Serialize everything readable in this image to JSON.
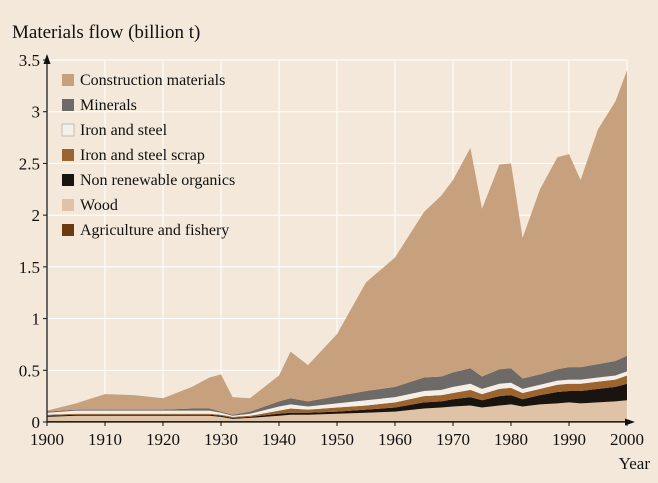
{
  "chart_data": {
    "type": "area",
    "stacked": true,
    "title": "Materials flow (billion t)",
    "xlabel": "Year",
    "ylabel": "",
    "xlim": [
      1900,
      2000
    ],
    "ylim": [
      0,
      3.5
    ],
    "x_ticks": [
      1900,
      1910,
      1920,
      1930,
      1940,
      1950,
      1960,
      1970,
      1980,
      1990,
      2000
    ],
    "x_tick_labels": [
      "1900",
      "1910",
      "1920",
      "1930",
      "1940",
      "1950",
      "1960",
      "1970",
      "1980",
      "1990",
      "2000"
    ],
    "y_ticks": [
      0,
      0.5,
      1,
      1.5,
      2,
      2.5,
      3,
      3.5
    ],
    "y_tick_labels": [
      "0",
      "0.5",
      "1",
      "1.5",
      "2",
      "2.5",
      "3",
      "3.5"
    ],
    "grid": true,
    "legend_position": "top-left",
    "x": [
      1900,
      1905,
      1910,
      1915,
      1920,
      1925,
      1928,
      1930,
      1932,
      1935,
      1940,
      1942,
      1945,
      1950,
      1955,
      1960,
      1965,
      1968,
      1970,
      1973,
      1975,
      1978,
      1980,
      1982,
      1985,
      1988,
      1990,
      1992,
      1995,
      1998,
      2000
    ],
    "series": [
      {
        "name": "Agriculture and fishery",
        "color": "#6b3a0f",
        "values": [
          0.01,
          0.01,
          0.01,
          0.01,
          0.01,
          0.01,
          0.01,
          0.01,
          0.01,
          0.01,
          0.01,
          0.01,
          0.01,
          0.01,
          0.01,
          0.01,
          0.01,
          0.01,
          0.01,
          0.01,
          0.01,
          0.01,
          0.01,
          0.01,
          0.01,
          0.01,
          0.01,
          0.01,
          0.01,
          0.01,
          0.01
        ]
      },
      {
        "name": "Wood",
        "color": "#e0c3a6",
        "values": [
          0.04,
          0.05,
          0.05,
          0.05,
          0.05,
          0.05,
          0.05,
          0.04,
          0.02,
          0.03,
          0.05,
          0.06,
          0.06,
          0.07,
          0.08,
          0.09,
          0.12,
          0.13,
          0.14,
          0.15,
          0.13,
          0.15,
          0.16,
          0.14,
          0.16,
          0.17,
          0.18,
          0.17,
          0.18,
          0.19,
          0.2
        ]
      },
      {
        "name": "Non renewable organics",
        "color": "#1a1411",
        "values": [
          0.01,
          0.01,
          0.01,
          0.01,
          0.01,
          0.01,
          0.01,
          0.01,
          0.01,
          0.01,
          0.02,
          0.02,
          0.02,
          0.02,
          0.03,
          0.04,
          0.06,
          0.06,
          0.07,
          0.08,
          0.07,
          0.09,
          0.09,
          0.07,
          0.09,
          0.11,
          0.11,
          0.12,
          0.13,
          0.14,
          0.16
        ]
      },
      {
        "name": "Iron and steel scrap",
        "color": "#9c642f",
        "values": [
          0.01,
          0.01,
          0.01,
          0.01,
          0.01,
          0.01,
          0.01,
          0.01,
          0.01,
          0.01,
          0.03,
          0.04,
          0.03,
          0.04,
          0.04,
          0.05,
          0.06,
          0.06,
          0.06,
          0.07,
          0.06,
          0.07,
          0.07,
          0.06,
          0.06,
          0.07,
          0.07,
          0.07,
          0.07,
          0.07,
          0.08
        ]
      },
      {
        "name": "Iron and steel",
        "color": "#f4efe8",
        "values": [
          0.02,
          0.03,
          0.03,
          0.03,
          0.03,
          0.03,
          0.03,
          0.02,
          0.01,
          0.02,
          0.04,
          0.04,
          0.03,
          0.04,
          0.05,
          0.05,
          0.05,
          0.05,
          0.06,
          0.06,
          0.05,
          0.05,
          0.05,
          0.04,
          0.04,
          0.04,
          0.04,
          0.04,
          0.04,
          0.04,
          0.04
        ]
      },
      {
        "name": "Minerals",
        "color": "#6e6a68",
        "values": [
          0.01,
          0.01,
          0.01,
          0.01,
          0.01,
          0.02,
          0.02,
          0.01,
          0.01,
          0.02,
          0.05,
          0.06,
          0.05,
          0.07,
          0.09,
          0.1,
          0.13,
          0.13,
          0.14,
          0.15,
          0.12,
          0.14,
          0.14,
          0.1,
          0.1,
          0.11,
          0.12,
          0.12,
          0.13,
          0.14,
          0.15
        ]
      },
      {
        "name": "Construction materials",
        "color": "#c7a07d",
        "values": [
          0.01,
          0.06,
          0.15,
          0.14,
          0.11,
          0.21,
          0.3,
          0.36,
          0.17,
          0.13,
          0.25,
          0.45,
          0.35,
          0.6,
          1.05,
          1.25,
          1.6,
          1.75,
          1.86,
          2.13,
          1.62,
          1.98,
          1.98,
          1.36,
          1.79,
          2.05,
          2.06,
          1.81,
          2.27,
          2.51,
          2.76
        ]
      }
    ]
  }
}
